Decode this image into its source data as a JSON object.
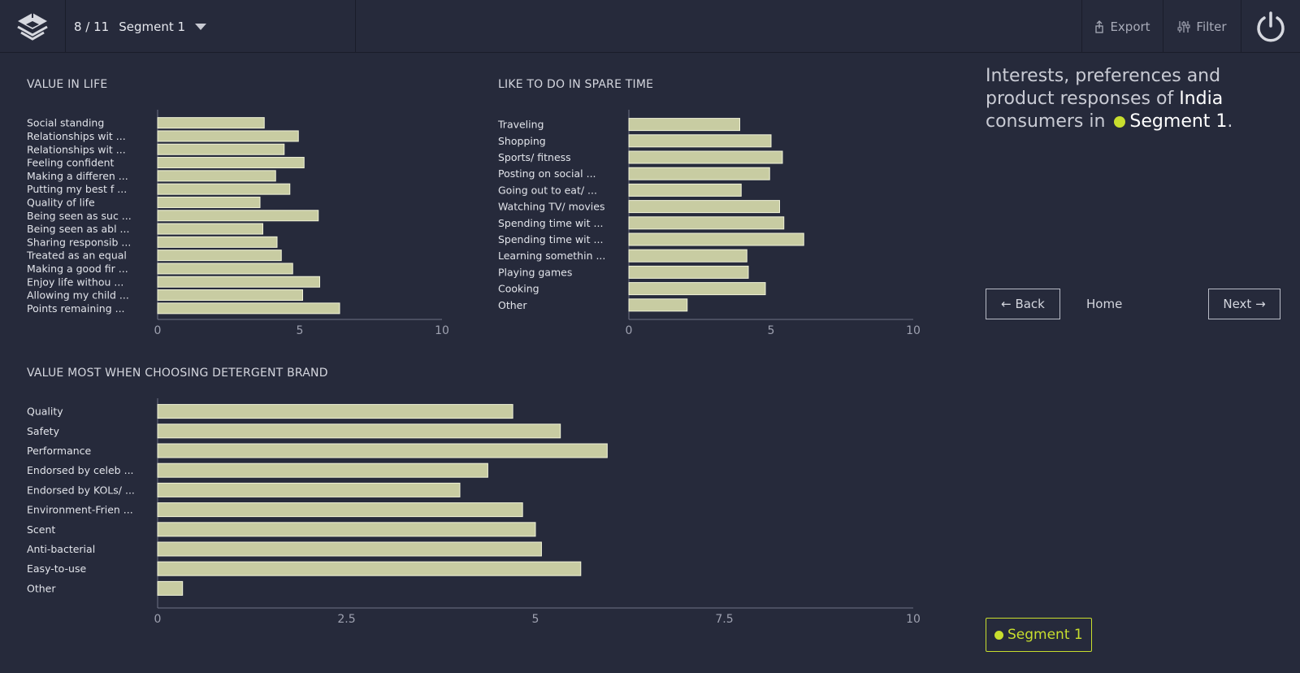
{
  "topbar": {
    "position": "8 / 11",
    "segment": "Segment 1",
    "export_label": "Export",
    "filter_label": "Filter"
  },
  "headline": {
    "text1": "Interests, preferences and product responses of ",
    "country": "India",
    "text2": " consumers in ",
    "segment": "Segment 1",
    "text3": "."
  },
  "nav": {
    "back_label": "← Back",
    "home_label": "Home",
    "next_label": "Next →"
  },
  "legend": {
    "segment_label": "Segment 1"
  },
  "colors": {
    "bar_fill": "#c8cca2",
    "bar_stroke": "#f0f2d8",
    "accent": "#c8de2e",
    "axis": "#6e7285"
  },
  "chart_data": [
    {
      "id": "value-in-life",
      "type": "bar",
      "orientation": "horizontal",
      "title": "VALUE IN LIFE",
      "categories": [
        "Social standing",
        "Relationships wit ...",
        "Relationships wit ...",
        "Feeling confident",
        "Making a differen ...",
        "Putting my best f ...",
        "Quality of life",
        "Being seen as suc ...",
        "Being seen as abl ...",
        "Sharing responsib ...",
        "Treated as an equal",
        "Making a good fir ...",
        "Enjoy life withou ...",
        "Allowing my child ...",
        "Points remaining ..."
      ],
      "values": [
        3.75,
        4.95,
        4.45,
        5.15,
        4.15,
        4.65,
        3.6,
        5.65,
        3.7,
        4.2,
        4.35,
        4.75,
        5.7,
        5.1,
        6.4
      ],
      "xlim": [
        0,
        10
      ],
      "ticks": [
        0,
        5,
        10
      ],
      "tick_labels": [
        "0",
        "5",
        "10"
      ]
    },
    {
      "id": "spare-time",
      "type": "bar",
      "orientation": "horizontal",
      "title": "LIKE TO DO IN SPARE TIME",
      "categories": [
        "Traveling",
        "Shopping",
        "Sports/ fitness",
        "Posting on social ...",
        "Going out to eat/ ...",
        "Watching TV/ movies",
        "Spending time wit ...",
        "Spending time wit ...",
        "Learning somethin ...",
        "Playing games",
        "Cooking",
        "Other"
      ],
      "values": [
        3.9,
        5.0,
        5.4,
        4.95,
        3.95,
        5.3,
        5.45,
        6.15,
        4.15,
        4.2,
        4.8,
        2.05
      ],
      "xlim": [
        0,
        10
      ],
      "ticks": [
        0,
        5,
        10
      ],
      "tick_labels": [
        "0",
        "5",
        "10"
      ]
    },
    {
      "id": "detergent-brand",
      "type": "bar",
      "orientation": "horizontal",
      "title": "VALUE MOST WHEN CHOOSING DETERGENT BRAND",
      "categories": [
        "Quality",
        "Safety",
        "Performance",
        "Endorsed by celeb ...",
        "Endorsed by KOLs/ ...",
        "Environment-Frien ...",
        "Scent",
        "Anti-bacterial",
        "Easy-to-use",
        "Other"
      ],
      "values": [
        4.7,
        5.33,
        5.95,
        4.37,
        4.0,
        4.83,
        5.0,
        5.08,
        5.6,
        0.33
      ],
      "xlim": [
        0,
        10
      ],
      "ticks": [
        0,
        2.5,
        5,
        7.5,
        10
      ],
      "tick_labels": [
        "0",
        "2.5",
        "5",
        "7.5",
        "10"
      ]
    }
  ]
}
